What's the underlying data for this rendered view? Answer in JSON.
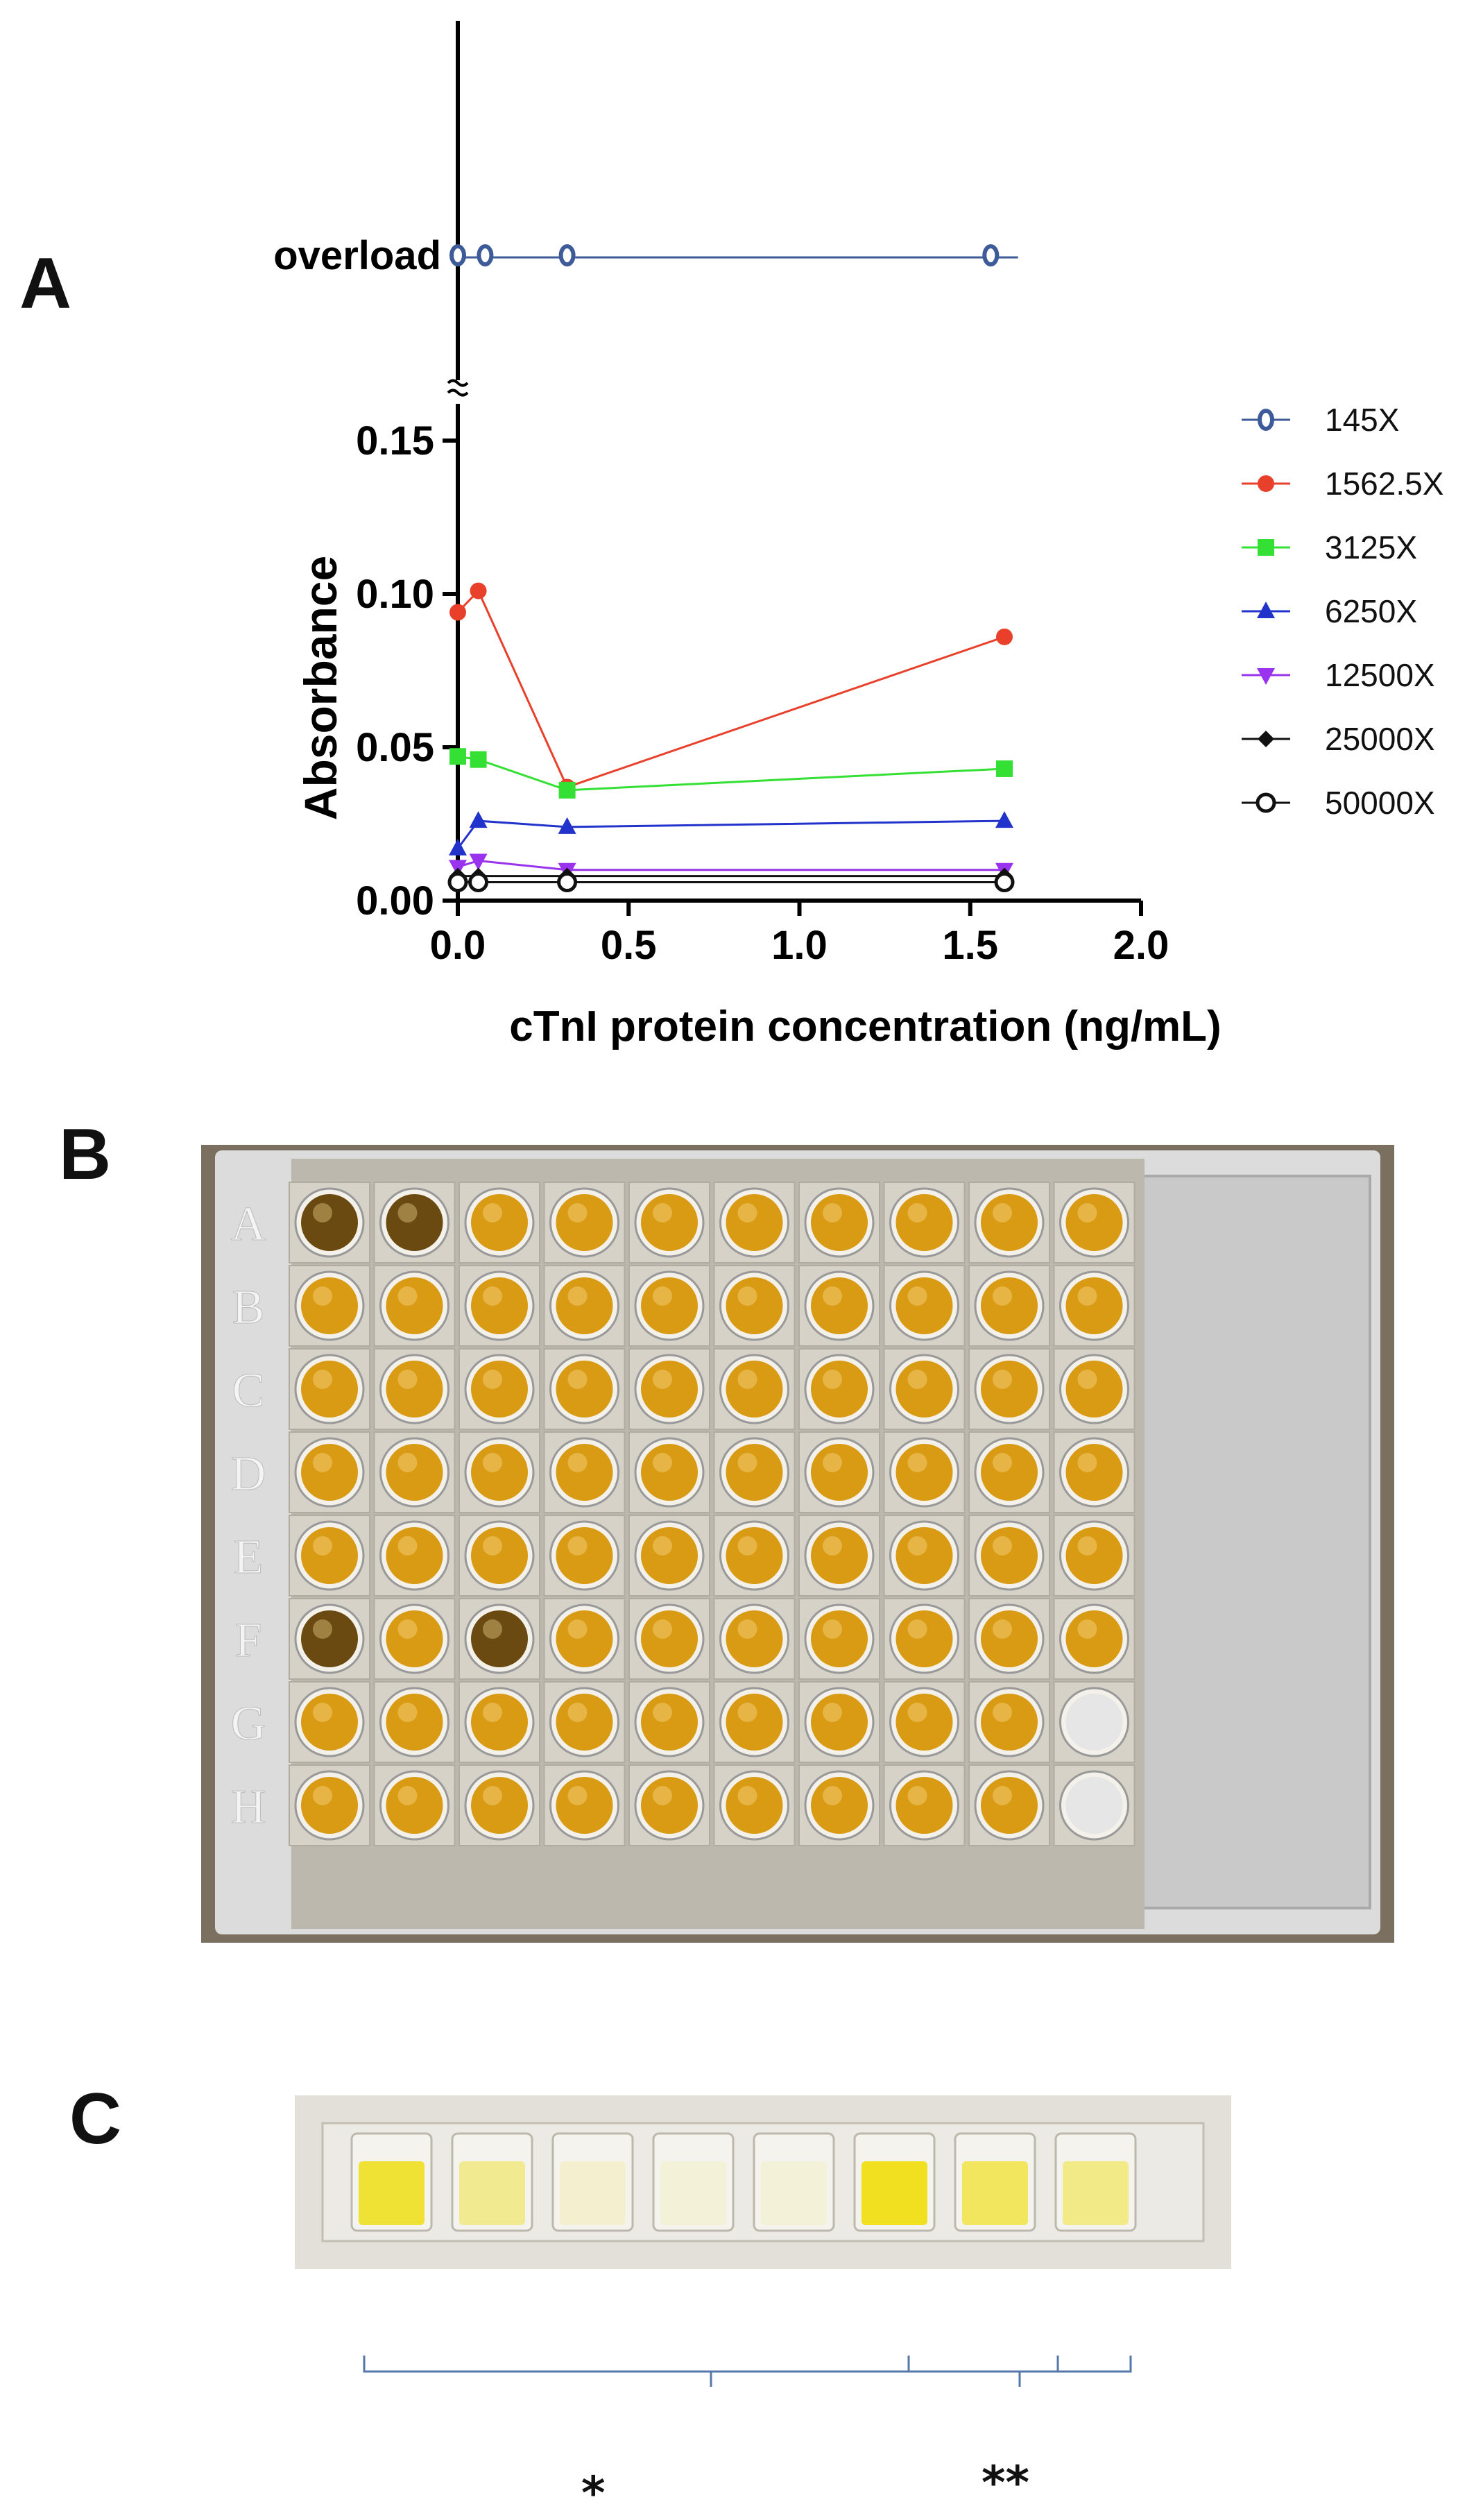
{
  "panels": {
    "a": "A",
    "b": "B",
    "c": "C"
  },
  "chart_data": {
    "type": "line",
    "xlabel": "cTnI protein concentration (ng/mL)",
    "ylabel": "Absorbance",
    "xlim": [
      0,
      2.0
    ],
    "ylim": [
      0,
      0.15
    ],
    "x_ticks": [
      "0.0",
      "0.5",
      "1.0",
      "1.5",
      "2.0"
    ],
    "y_ticks": [
      "0.00",
      "0.05",
      "0.10",
      "0.15"
    ],
    "overload_label": "overload",
    "grid": false,
    "legend": "right",
    "series": [
      {
        "name": "145X",
        "color": "#3d5a99",
        "marker": "o-open",
        "overload": true,
        "x": [
          0,
          0.08,
          0.32,
          1.56
        ],
        "y": [
          null,
          null,
          null,
          null
        ]
      },
      {
        "name": "1562.5X",
        "color": "#e8402a",
        "marker": "circle",
        "x": [
          0,
          0.06,
          0.32,
          1.6
        ],
        "y": [
          0.094,
          0.101,
          0.037,
          0.086
        ]
      },
      {
        "name": "3125X",
        "color": "#33e033",
        "marker": "square",
        "x": [
          0,
          0.06,
          0.32,
          1.6
        ],
        "y": [
          0.047,
          0.046,
          0.036,
          0.043
        ]
      },
      {
        "name": "6250X",
        "color": "#2233cc",
        "marker": "triangle-up",
        "x": [
          0,
          0.06,
          0.32,
          1.6
        ],
        "y": [
          0.017,
          0.026,
          0.024,
          0.026
        ]
      },
      {
        "name": "12500X",
        "color": "#9933ee",
        "marker": "triangle-down",
        "x": [
          0,
          0.06,
          0.32,
          1.6
        ],
        "y": [
          0.011,
          0.013,
          0.01,
          0.01
        ]
      },
      {
        "name": "25000X",
        "color": "#111111",
        "marker": "diamond",
        "x": [
          0,
          0.06,
          0.32,
          1.6
        ],
        "y": [
          0.008,
          0.008,
          0.008,
          0.008
        ]
      },
      {
        "name": "50000X",
        "color": "#111111",
        "marker": "circle-open",
        "x": [
          0,
          0.06,
          0.32,
          1.6
        ],
        "y": [
          0.006,
          0.006,
          0.006,
          0.006
        ]
      }
    ]
  },
  "plate": {
    "row_labels": [
      "A",
      "B",
      "C",
      "D",
      "E",
      "F",
      "G",
      "H"
    ],
    "columns": 10,
    "empty_wells": [
      "G10",
      "H10"
    ],
    "dark_wells": [
      "A1",
      "A2",
      "F1",
      "F3"
    ],
    "colors": {
      "well": "#d99a14",
      "dark": "#6b4a12",
      "frame": "#dcdcdc",
      "bg": "#7b6f60"
    }
  },
  "strip": {
    "wells": 8,
    "intensity": [
      0.9,
      0.45,
      0.15,
      0.1,
      0.1,
      1.0,
      0.7,
      0.5
    ],
    "group1_label": "*",
    "group2_label": "**",
    "colors": {
      "yellow": "#f0e020",
      "bracket": "#5577aa"
    }
  }
}
